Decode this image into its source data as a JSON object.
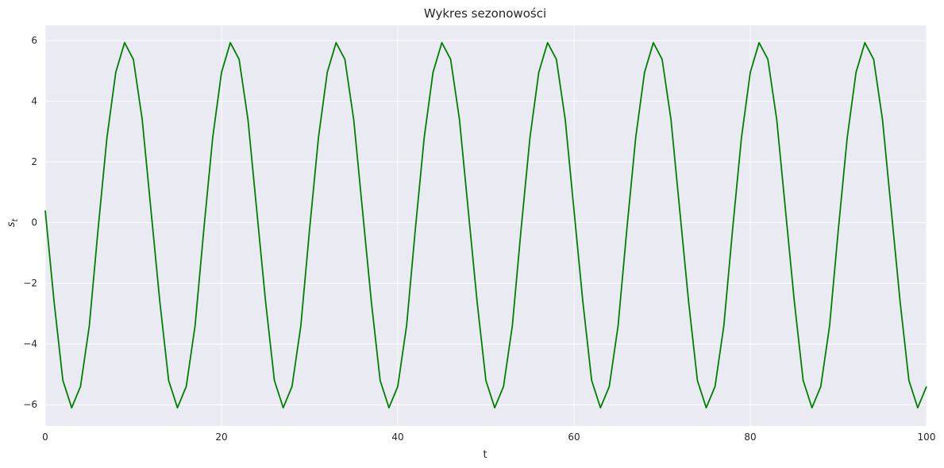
{
  "chart_data": {
    "type": "line",
    "title": "Wykres sezonowości",
    "xlabel": "t",
    "ylabel_main": "s",
    "ylabel_sub": "t",
    "xlim": [
      0,
      100
    ],
    "ylim": [
      -6.7,
      6.5
    ],
    "xticks": [
      0,
      20,
      40,
      60,
      80,
      100
    ],
    "xtick_labels": [
      "0",
      "20",
      "40",
      "60",
      "80",
      "100"
    ],
    "yticks": [
      -6,
      -4,
      -2,
      0,
      2,
      4,
      6
    ],
    "ytick_labels": [
      "−6",
      "−4",
      "−2",
      "0",
      "2",
      "4",
      "6"
    ],
    "grid": true,
    "background": "#eaeaf2",
    "grid_color": "#ffffff",
    "series": [
      {
        "color": "#008000",
        "x": [
          0,
          1,
          2,
          3,
          4,
          5,
          6,
          7,
          8,
          9,
          10,
          11,
          12,
          13,
          14,
          15,
          16,
          17,
          18,
          19,
          20,
          21,
          22,
          23,
          24,
          25,
          26,
          27,
          28,
          29,
          30,
          31,
          32,
          33,
          34,
          35,
          36,
          37,
          38,
          39,
          40,
          41,
          42,
          43,
          44,
          45,
          46,
          47,
          48,
          49,
          50,
          51,
          52,
          53,
          54,
          55,
          56,
          57,
          58,
          59,
          60,
          61,
          62,
          63,
          64,
          65,
          66,
          67,
          68,
          69,
          70,
          71,
          72,
          73,
          74,
          75,
          76,
          77,
          78,
          79,
          80,
          81,
          82,
          83,
          84,
          85,
          86,
          87,
          88,
          89,
          90,
          91,
          92,
          93,
          94,
          95,
          96,
          97,
          98,
          99,
          100
        ],
        "y": [
          0.4,
          -2.6,
          -5.2,
          -6.1,
          -5.4,
          -3.4,
          -0.2,
          2.8,
          4.95,
          5.93,
          5.38,
          3.4,
          0.4,
          -2.6,
          -5.2,
          -6.1,
          -5.4,
          -3.4,
          -0.2,
          2.8,
          4.95,
          5.93,
          5.38,
          3.4,
          0.4,
          -2.6,
          -5.2,
          -6.1,
          -5.4,
          -3.4,
          -0.2,
          2.8,
          4.95,
          5.93,
          5.38,
          3.4,
          0.4,
          -2.6,
          -5.2,
          -6.1,
          -5.4,
          -3.4,
          -0.2,
          2.8,
          4.95,
          5.93,
          5.38,
          3.4,
          0.4,
          -2.6,
          -5.2,
          -6.1,
          -5.4,
          -3.4,
          -0.2,
          2.8,
          4.95,
          5.93,
          5.38,
          3.4,
          0.4,
          -2.6,
          -5.2,
          -6.1,
          -5.4,
          -3.4,
          -0.2,
          2.8,
          4.95,
          5.93,
          5.38,
          3.4,
          0.4,
          -2.6,
          -5.2,
          -6.1,
          -5.4,
          -3.4,
          -0.2,
          2.8,
          4.95,
          5.93,
          5.38,
          3.4,
          0.4,
          -2.6,
          -5.2,
          -6.1,
          -5.4,
          -3.4,
          -0.2,
          2.8,
          4.95,
          5.93,
          5.38,
          3.4,
          0.4,
          -2.6,
          -5.2,
          -6.1,
          -5.4
        ]
      }
    ]
  }
}
